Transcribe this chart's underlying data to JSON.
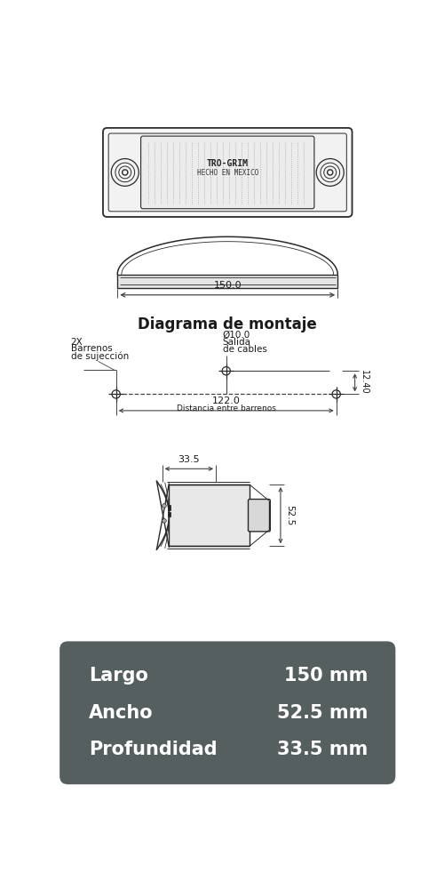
{
  "bg_color": "#ffffff",
  "line_color": "#2a2a2a",
  "dim_color": "#444444",
  "text_color": "#1a1a1a",
  "box_bg_color": "#555f5f",
  "box_text_color": "#ffffff",
  "title_diagram": "Diagrama de montaje",
  "dim_150": "150.0",
  "dim_122": "122.0",
  "dim_122_label": "Distancia entre barrenos",
  "dim_12_40": "12.40",
  "dim_33_5": "33.5",
  "dim_52_5": "52.5",
  "dim_10": "Ø10.0",
  "label_salida": "Salida",
  "label_cables": "de cables",
  "label_2x": "2X",
  "label_barrenos": "Barrenos",
  "label_sujecion": "de sujección",
  "specs": [
    {
      "label": "Largo",
      "value": "150 mm"
    },
    {
      "label": "Ancho",
      "value": "52.5 mm"
    },
    {
      "label": "Profundidad",
      "value": "33.5 mm"
    }
  ],
  "brand_line1": "TRO-GRIM",
  "brand_line2": "HECHO EN MEXICO"
}
